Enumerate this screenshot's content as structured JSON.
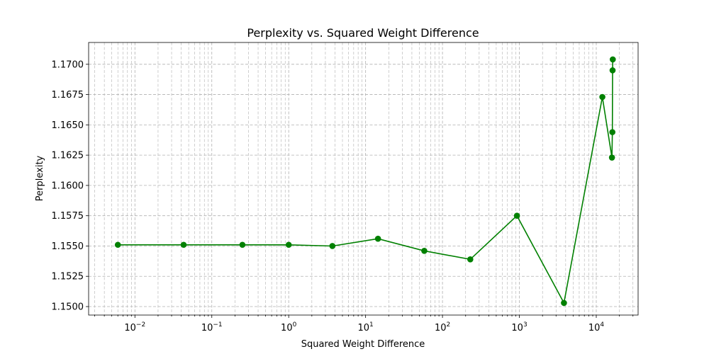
{
  "chart_data": {
    "type": "line",
    "title": "Perplexity vs. Squared Weight Difference",
    "xlabel": "Squared Weight Difference",
    "ylabel": "Perplexity",
    "x_scale": "log",
    "xlim": [
      0.0025,
      35000
    ],
    "ylim": [
      1.1493,
      1.1718
    ],
    "grid": true,
    "x_ticks": [
      {
        "base": "10",
        "exp": "−2",
        "value": 0.01
      },
      {
        "base": "10",
        "exp": "−1",
        "value": 0.1
      },
      {
        "base": "10",
        "exp": "0",
        "value": 1
      },
      {
        "base": "10",
        "exp": "1",
        "value": 10
      },
      {
        "base": "10",
        "exp": "2",
        "value": 100
      },
      {
        "base": "10",
        "exp": "3",
        "value": 1000
      },
      {
        "base": "10",
        "exp": "4",
        "value": 10000
      }
    ],
    "y_ticks": [
      {
        "label": "1.1500",
        "value": 1.15
      },
      {
        "label": "1.1525",
        "value": 1.1525
      },
      {
        "label": "1.1550",
        "value": 1.155
      },
      {
        "label": "1.1575",
        "value": 1.1575
      },
      {
        "label": "1.1600",
        "value": 1.16
      },
      {
        "label": "1.1625",
        "value": 1.1625
      },
      {
        "label": "1.1650",
        "value": 1.165
      },
      {
        "label": "1.1675",
        "value": 1.1675
      },
      {
        "label": "1.1700",
        "value": 1.17
      }
    ],
    "series": [
      {
        "color": "#008000",
        "marker": "circle",
        "x": [
          0.006,
          0.043,
          0.25,
          1.0,
          3.7,
          14.5,
          58,
          230,
          930,
          3800,
          12000,
          16000,
          16200,
          16300,
          16400
        ],
        "y": [
          1.1551,
          1.1551,
          1.1551,
          1.1551,
          1.155,
          1.1556,
          1.1546,
          1.1539,
          1.1575,
          1.1503,
          1.1673,
          1.1623,
          1.1644,
          1.1695,
          1.1704
        ]
      }
    ]
  }
}
